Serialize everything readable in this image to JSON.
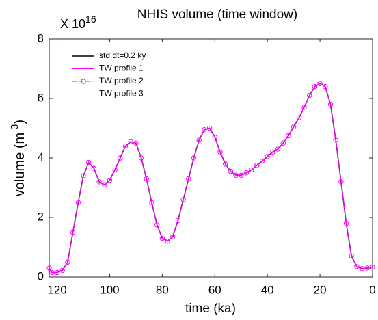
{
  "chart_data": {
    "type": "line",
    "title": "NHIS volume (time window)",
    "x_label": "time (ka)",
    "y_label": "volume (m",
    "y_label_sup": "3",
    "y_label_end": ")",
    "y_multiplier": "X 10",
    "y_exponent": "16",
    "x": [
      123,
      122,
      120,
      118,
      116,
      114,
      112,
      110,
      108,
      106,
      104,
      102,
      100,
      98,
      96,
      94,
      92,
      90,
      88,
      86,
      84,
      82,
      80,
      78,
      76,
      74,
      72,
      70,
      68,
      66,
      64,
      62,
      60,
      58,
      56,
      54,
      52,
      50,
      48,
      46,
      44,
      42,
      40,
      38,
      36,
      34,
      32,
      30,
      28,
      26,
      24,
      22,
      20,
      18,
      16,
      14,
      12,
      10,
      8,
      6,
      4,
      2,
      0
    ],
    "series": [
      {
        "name": "std dt=0.2 ky",
        "color": "#000000",
        "line": "solid",
        "values": [
          0.3,
          0.15,
          0.15,
          0.22,
          0.5,
          1.5,
          2.5,
          3.4,
          3.85,
          3.65,
          3.2,
          3.1,
          3.25,
          3.6,
          4.0,
          4.4,
          4.55,
          4.5,
          4.0,
          3.3,
          2.5,
          1.75,
          1.3,
          1.2,
          1.35,
          1.9,
          2.6,
          3.3,
          4.0,
          4.6,
          4.95,
          5.0,
          4.7,
          4.2,
          3.8,
          3.55,
          3.42,
          3.42,
          3.5,
          3.6,
          3.75,
          3.9,
          4.05,
          4.2,
          4.3,
          4.5,
          4.75,
          5.05,
          5.35,
          5.7,
          6.1,
          6.4,
          6.5,
          6.4,
          5.8,
          4.6,
          3.2,
          1.8,
          0.7,
          0.35,
          0.28,
          0.3,
          0.33
        ]
      },
      {
        "name": "TW profile 1",
        "color": "#ff00ff",
        "line": "solid",
        "values": [
          0.3,
          0.15,
          0.15,
          0.22,
          0.5,
          1.5,
          2.5,
          3.4,
          3.85,
          3.65,
          3.2,
          3.1,
          3.25,
          3.6,
          4.0,
          4.4,
          4.55,
          4.5,
          4.0,
          3.3,
          2.5,
          1.75,
          1.3,
          1.2,
          1.35,
          1.9,
          2.6,
          3.3,
          4.0,
          4.6,
          4.95,
          5.0,
          4.7,
          4.2,
          3.8,
          3.55,
          3.42,
          3.42,
          3.5,
          3.6,
          3.75,
          3.9,
          4.05,
          4.2,
          4.3,
          4.5,
          4.75,
          5.05,
          5.35,
          5.7,
          6.1,
          6.4,
          6.5,
          6.4,
          5.8,
          4.6,
          3.2,
          1.8,
          0.7,
          0.35,
          0.28,
          0.3,
          0.33
        ]
      },
      {
        "name": "TW profile 2",
        "color": "#ff00ff",
        "line": "dashed",
        "marker": "circle",
        "values": [
          0.3,
          0.15,
          0.15,
          0.22,
          0.5,
          1.5,
          2.5,
          3.4,
          3.85,
          3.65,
          3.2,
          3.1,
          3.25,
          3.6,
          4.0,
          4.4,
          4.55,
          4.5,
          4.0,
          3.3,
          2.5,
          1.75,
          1.3,
          1.2,
          1.35,
          1.9,
          2.6,
          3.3,
          4.0,
          4.6,
          4.95,
          5.0,
          4.7,
          4.2,
          3.8,
          3.55,
          3.42,
          3.42,
          3.5,
          3.6,
          3.75,
          3.9,
          4.05,
          4.2,
          4.3,
          4.5,
          4.75,
          5.05,
          5.35,
          5.7,
          6.1,
          6.4,
          6.5,
          6.4,
          5.8,
          4.6,
          3.2,
          1.8,
          0.7,
          0.35,
          0.28,
          0.3,
          0.33
        ]
      },
      {
        "name": "TW profile 3",
        "color": "#ff00ff",
        "line": "dashdot",
        "values": [
          0.3,
          0.15,
          0.15,
          0.22,
          0.5,
          1.5,
          2.5,
          3.4,
          3.85,
          3.65,
          3.2,
          3.1,
          3.25,
          3.6,
          4.0,
          4.4,
          4.55,
          4.5,
          4.0,
          3.3,
          2.5,
          1.75,
          1.3,
          1.2,
          1.35,
          1.9,
          2.6,
          3.3,
          4.0,
          4.6,
          4.95,
          5.0,
          4.7,
          4.2,
          3.8,
          3.55,
          3.42,
          3.42,
          3.5,
          3.6,
          3.75,
          3.9,
          4.05,
          4.2,
          4.3,
          4.5,
          4.75,
          5.05,
          5.35,
          5.7,
          6.1,
          6.4,
          6.5,
          6.4,
          5.8,
          4.6,
          3.2,
          1.8,
          0.7,
          0.35,
          0.28,
          0.3,
          0.33
        ]
      }
    ],
    "xlim": [
      123,
      0
    ],
    "xticks": [
      120,
      100,
      80,
      60,
      40,
      20,
      0
    ],
    "ylim": [
      0,
      8
    ],
    "yticks": [
      0,
      2,
      4,
      6,
      8
    ],
    "grid": false,
    "legend": "top-left"
  }
}
